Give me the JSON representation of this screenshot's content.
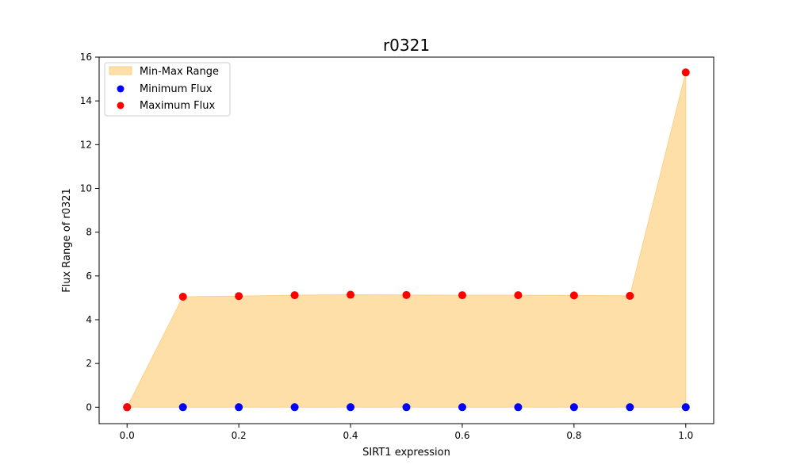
{
  "chart_data": {
    "type": "scatter",
    "title": "r0321",
    "xlabel": "SIRT1 expression",
    "ylabel": "Flux Range of r0321",
    "x": [
      0.0,
      0.1,
      0.2,
      0.3,
      0.4,
      0.5,
      0.6,
      0.7,
      0.8,
      0.9,
      1.0
    ],
    "xlim": [
      -0.05,
      1.05
    ],
    "ylim": [
      -0.75,
      16
    ],
    "xticks": [
      0.0,
      0.2,
      0.4,
      0.6,
      0.8,
      1.0
    ],
    "xtick_labels": [
      "0.0",
      "0.2",
      "0.4",
      "0.6",
      "0.8",
      "1.0"
    ],
    "yticks": [
      0,
      2,
      4,
      6,
      8,
      10,
      12,
      14,
      16
    ],
    "ytick_labels": [
      "0",
      "2",
      "4",
      "6",
      "8",
      "10",
      "12",
      "14",
      "16"
    ],
    "grid": false,
    "legend_position": "top-left",
    "series": [
      {
        "name": "Min-Max Range",
        "kind": "fill_between",
        "color": "#ffdfa8",
        "edge_color": "#fbd18a",
        "lower": [
          0.0,
          0.0,
          0.0,
          0.0,
          0.0,
          0.0,
          0.0,
          0.0,
          0.0,
          0.0,
          0.0
        ],
        "upper": [
          0.0,
          5.05,
          5.08,
          5.12,
          5.14,
          5.13,
          5.12,
          5.12,
          5.11,
          5.09,
          15.3
        ]
      },
      {
        "name": "Minimum Flux",
        "kind": "scatter",
        "color": "#0000ff",
        "values": [
          0.0,
          0.0,
          0.0,
          0.0,
          0.0,
          0.0,
          0.0,
          0.0,
          0.0,
          0.0,
          0.0
        ]
      },
      {
        "name": "Maximum Flux",
        "kind": "scatter",
        "color": "#ff0000",
        "values": [
          0.0,
          5.05,
          5.08,
          5.12,
          5.14,
          5.13,
          5.12,
          5.12,
          5.11,
          5.09,
          15.3
        ]
      }
    ]
  }
}
